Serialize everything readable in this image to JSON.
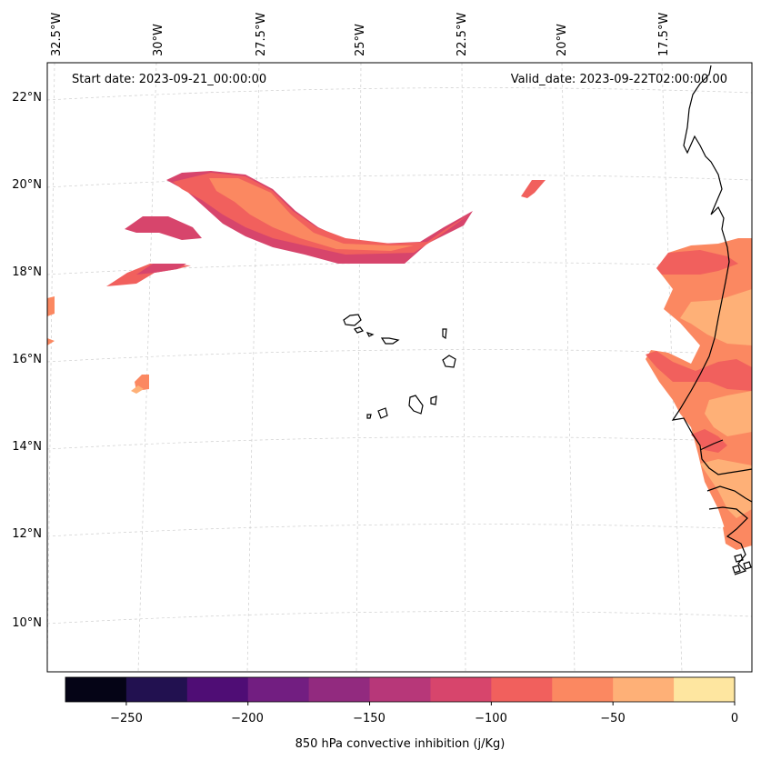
{
  "map": {
    "start_date": "Start date: 2023-09-21_00:00:00",
    "valid_date": "Valid_date: 2023-09-22T02:00:00.00",
    "lon_labels": [
      "32.5°W",
      "30°W",
      "27.5°W",
      "25°W",
      "22.5°W",
      "20°W",
      "17.5°W"
    ],
    "lat_labels": [
      "22°N",
      "20°N",
      "18°N",
      "16°N",
      "14°N",
      "12°N",
      "10°N"
    ],
    "region": "Cabo Verde islands and West African coast (Senegal, Gambia, Guinea-Bissau, Mauritania)",
    "variable": "850 hPa convective inhibition"
  },
  "colorbar": {
    "label": "850 hPa convective inhibition (j/Kg)",
    "ticks": [
      "−250",
      "−200",
      "−150",
      "−100",
      "−50",
      "0"
    ],
    "levels": [
      -275,
      -250,
      -225,
      -200,
      -175,
      -150,
      -125,
      -100,
      -75,
      -50,
      -25,
      0
    ],
    "colors": [
      "#050416",
      "#221150",
      "#4f0d75",
      "#721e81",
      "#922a7f",
      "#b73779",
      "#d7456c",
      "#f1605d",
      "#fb8861",
      "#feb077",
      "#fee6a0"
    ]
  }
}
